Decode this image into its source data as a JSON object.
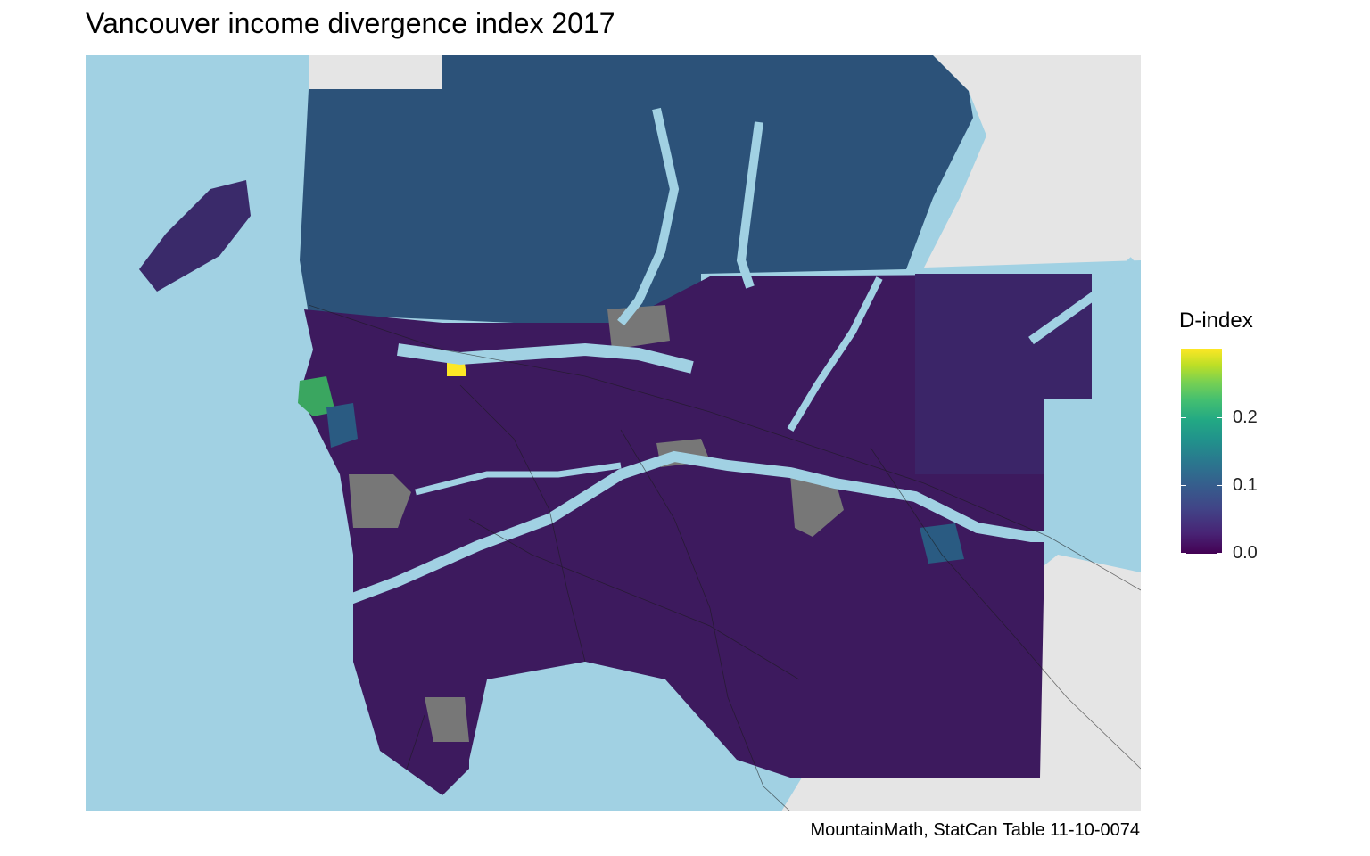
{
  "title": "Vancouver income divergence index 2017",
  "caption": "MountainMath, StatCan Table 11-10-0074",
  "legend": {
    "title": "D-index",
    "ticks": [
      "0.2",
      "0.1",
      "0.0"
    ],
    "scale": "viridis",
    "range": [
      0.0,
      0.3
    ]
  },
  "colors": {
    "water": "#a1d1e3",
    "land_background": "#e5e5e5",
    "missing": "#777777",
    "d_low": "#440154",
    "d_high": "#fde725"
  },
  "map": {
    "region": "Metro Vancouver",
    "variable": "D-index"
  }
}
